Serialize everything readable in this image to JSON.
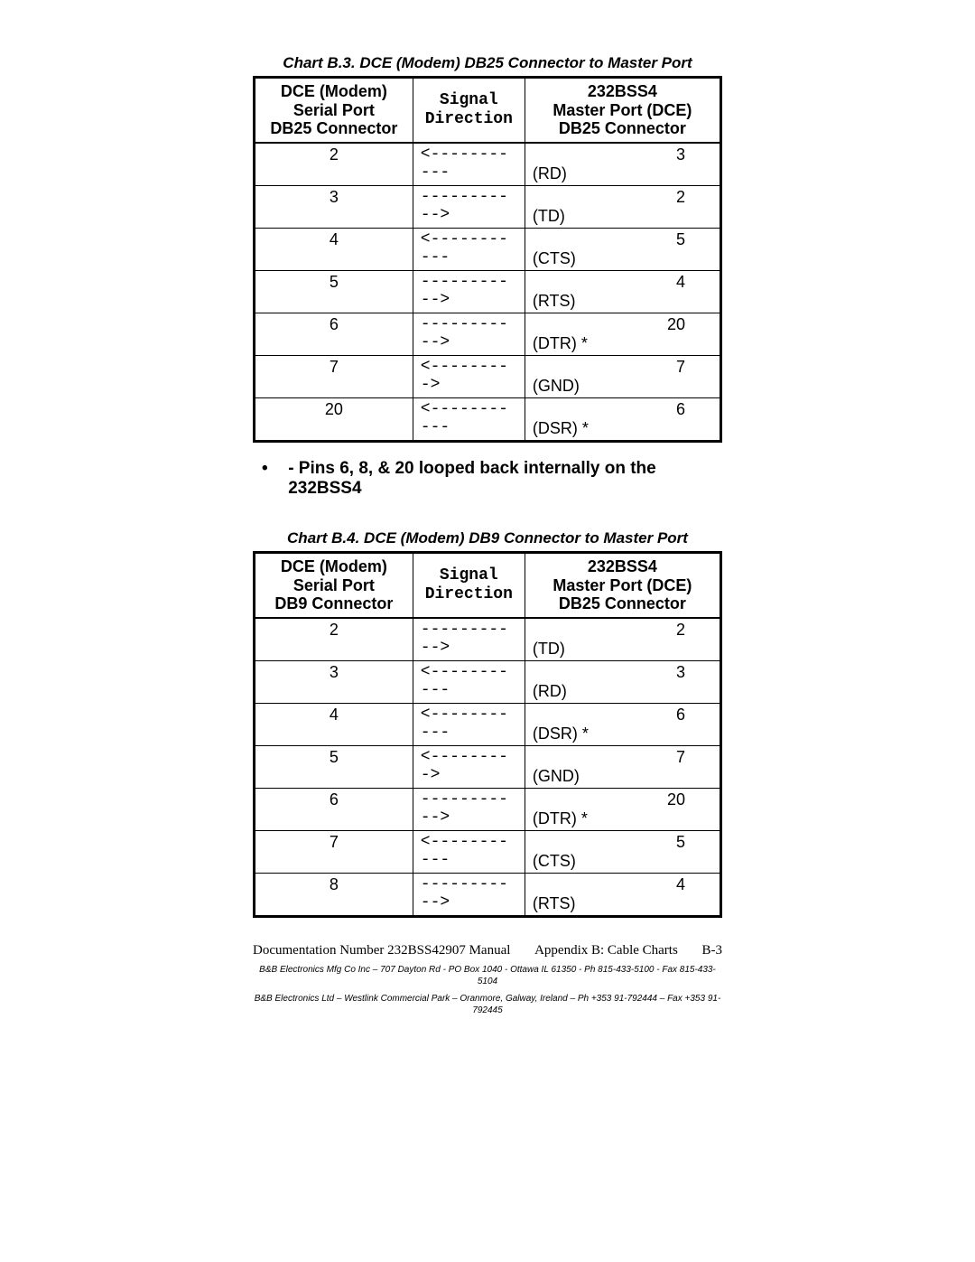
{
  "chart1": {
    "title": "Chart B.3.  DCE (Modem) DB25 Connector to Master Port",
    "col1": "DCE (Modem)\nSerial Port\nDB25 Connector",
    "col2": "Signal\nDirection",
    "col3": "232BSS4\nMaster Port (DCE)\nDB25 Connector",
    "rows": [
      {
        "left": "2",
        "dir": "<-----------",
        "rightPin": "3",
        "rightSig": "(RD)"
      },
      {
        "left": "3",
        "dir": "----------->",
        "rightPin": "2",
        "rightSig": "(TD)"
      },
      {
        "left": "4",
        "dir": "<-----------",
        "rightPin": "5",
        "rightSig": "(CTS)"
      },
      {
        "left": "5",
        "dir": "----------->",
        "rightPin": "4",
        "rightSig": "(RTS)"
      },
      {
        "left": "6",
        "dir": "----------->",
        "rightPin": "20",
        "rightSig": "(DTR) *"
      },
      {
        "left": "7",
        "dir": "<--------->",
        "rightPin": "7",
        "rightSig": "(GND)"
      },
      {
        "left": "20",
        "dir": "<-----------",
        "rightPin": "6",
        "rightSig": "(DSR) *"
      }
    ]
  },
  "note": "- Pins 6, 8, & 20 looped back internally on the 232BSS4",
  "chart2": {
    "title": "Chart B.4.  DCE (Modem) DB9 Connector to Master Port",
    "col1": "DCE (Modem)\nSerial Port\nDB9 Connector",
    "col2": "Signal\nDirection",
    "col3": "232BSS4\nMaster Port (DCE)\nDB25 Connector",
    "rows": [
      {
        "left": "2",
        "dir": "----------->",
        "rightPin": "2",
        "rightSig": "(TD)"
      },
      {
        "left": "3",
        "dir": "<-----------",
        "rightPin": "3",
        "rightSig": "(RD)"
      },
      {
        "left": "4",
        "dir": "<-----------",
        "rightPin": "6",
        "rightSig": "(DSR) *"
      },
      {
        "left": "5",
        "dir": "<--------->",
        "rightPin": "7",
        "rightSig": "(GND)"
      },
      {
        "left": "6",
        "dir": "----------->",
        "rightPin": "20",
        "rightSig": "(DTR) *"
      },
      {
        "left": "7",
        "dir": "<-----------",
        "rightPin": "5",
        "rightSig": "(CTS)"
      },
      {
        "left": "8",
        "dir": "----------->",
        "rightPin": "4",
        "rightSig": "(RTS)"
      }
    ]
  },
  "footer": {
    "docnum": "Documentation Number 232BSS42907 Manual",
    "section": "Appendix B: Cable Charts",
    "pagenum": "B-3",
    "addr1": "B&B Electronics Mfg Co Inc – 707 Dayton Rd - PO Box 1040 - Ottawa IL 61350 - Ph 815-433-5100 - Fax 815-433-5104",
    "addr2": "B&B Electronics Ltd – Westlink Commercial Park – Oranmore, Galway, Ireland – Ph +353 91-792444 – Fax +353 91-792445"
  }
}
